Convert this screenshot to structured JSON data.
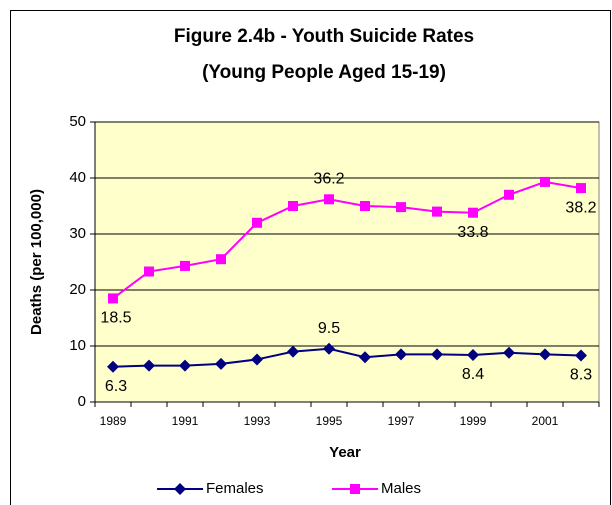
{
  "chart_data": {
    "type": "line",
    "title": "Figure 2.4b - Youth Suicide Rates",
    "subtitle": "(Young People Aged 15-19)",
    "x_label": "Year",
    "y_label": "Deaths (per 100,000)",
    "categories": [
      "1989",
      null,
      "1991",
      null,
      "1993",
      null,
      "1995",
      null,
      "1997",
      null,
      "1999",
      null,
      "2001",
      null
    ],
    "series": [
      {
        "name": "Females",
        "color": "#000080",
        "marker": "diamond",
        "values": [
          6.3,
          6.5,
          6.5,
          6.8,
          7.6,
          9.0,
          9.5,
          8.0,
          8.5,
          8.5,
          8.4,
          8.8,
          8.5,
          8.3
        ],
        "value_labels": [
          "6.3",
          null,
          null,
          null,
          null,
          null,
          "9.5",
          null,
          null,
          null,
          "8.4",
          null,
          null,
          "8.3"
        ]
      },
      {
        "name": "Males",
        "color": "#ff00ff",
        "marker": "square",
        "values": [
          18.5,
          23.3,
          24.3,
          25.5,
          32.0,
          35.0,
          36.2,
          35.0,
          34.8,
          34.0,
          33.8,
          37.0,
          39.3,
          38.2
        ],
        "value_labels": [
          "18.5",
          null,
          null,
          null,
          null,
          null,
          "36.2",
          null,
          null,
          null,
          "33.8",
          null,
          null,
          "38.2"
        ]
      }
    ],
    "ylim": [
      0,
      50
    ],
    "yticks": [
      0,
      10,
      20,
      30,
      40,
      50
    ],
    "grid": true,
    "legend": "bottom",
    "plot_background": "#ffffcc"
  }
}
